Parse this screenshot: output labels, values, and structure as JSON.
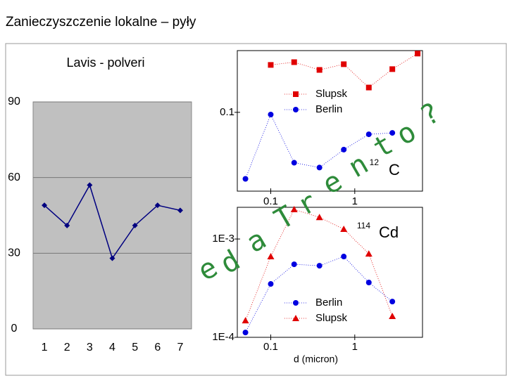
{
  "slide_title": "Zanieczyszczenie lokalne – pyły",
  "chart_data": [
    {
      "type": "line",
      "title": "Lavis - polveri",
      "categories": [
        "1",
        "2",
        "3",
        "4",
        "5",
        "6",
        "7"
      ],
      "series": [
        {
          "color": "#000080",
          "marker": "diamond",
          "values": [
            49,
            41,
            57,
            28,
            41,
            49,
            47
          ]
        }
      ],
      "ylim": [
        0,
        90
      ],
      "yticks": [
        0,
        30,
        60,
        90
      ],
      "grid": true,
      "plot_background": "#c0c0c0"
    },
    {
      "type": "scatter",
      "annotation": [
        "12",
        "C"
      ],
      "x": [
        0.05,
        0.1,
        0.19,
        0.38,
        0.74,
        1.47,
        2.8,
        5.6
      ],
      "series": [
        {
          "name": "Slupsk",
          "color": "#e00000",
          "marker": "square",
          "values": [
            null,
            0.301,
            0.321,
            0.268,
            0.306,
            0.178,
            0.273,
            0.392
          ]
        },
        {
          "name": "Berlin",
          "color": "#0000e0",
          "marker": "circle",
          "values": [
            0.0213,
            0.095,
            0.031,
            0.0277,
            0.042,
            0.06,
            0.062,
            null
          ]
        }
      ],
      "xlog": true,
      "ylog": true,
      "xlim": [
        0.04,
        6.4
      ],
      "ylim": [
        0.016,
        0.42
      ],
      "xticks": [
        0.1,
        1
      ],
      "yticks": [
        0.1
      ]
    },
    {
      "type": "scatter",
      "annotation": [
        "114",
        "Cd"
      ],
      "xlabel": "d (micron)",
      "x": [
        0.05,
        0.1,
        0.19,
        0.38,
        0.74,
        1.47,
        2.8
      ],
      "series": [
        {
          "name": "Berlin",
          "color": "#0000e0",
          "marker": "circle",
          "values": [
            0.000112,
            0.000349,
            0.000553,
            0.000535,
            0.000663,
            0.000361,
            0.000231
          ]
        },
        {
          "name": "Slupsk",
          "color": "#e00000",
          "marker": "triangle",
          "values": [
            0.000148,
            0.000663,
            0.002,
            0.00166,
            0.00126,
            0.000708,
            0.000164
          ]
        }
      ],
      "xlog": true,
      "ylog": true,
      "xlim": [
        0.04,
        6.4
      ],
      "ylim": [
        0.0001,
        0.0021
      ],
      "xticks": [
        0.1,
        1
      ],
      "yticks": [
        {
          "value": 0.0001,
          "label": "1E-4"
        },
        {
          "value": 0.001,
          "label": "1E-3"
        }
      ]
    }
  ],
  "watermark": [
    "e",
    "d",
    "a",
    "T",
    "r",
    "e",
    "n",
    "t",
    "o",
    "?"
  ]
}
